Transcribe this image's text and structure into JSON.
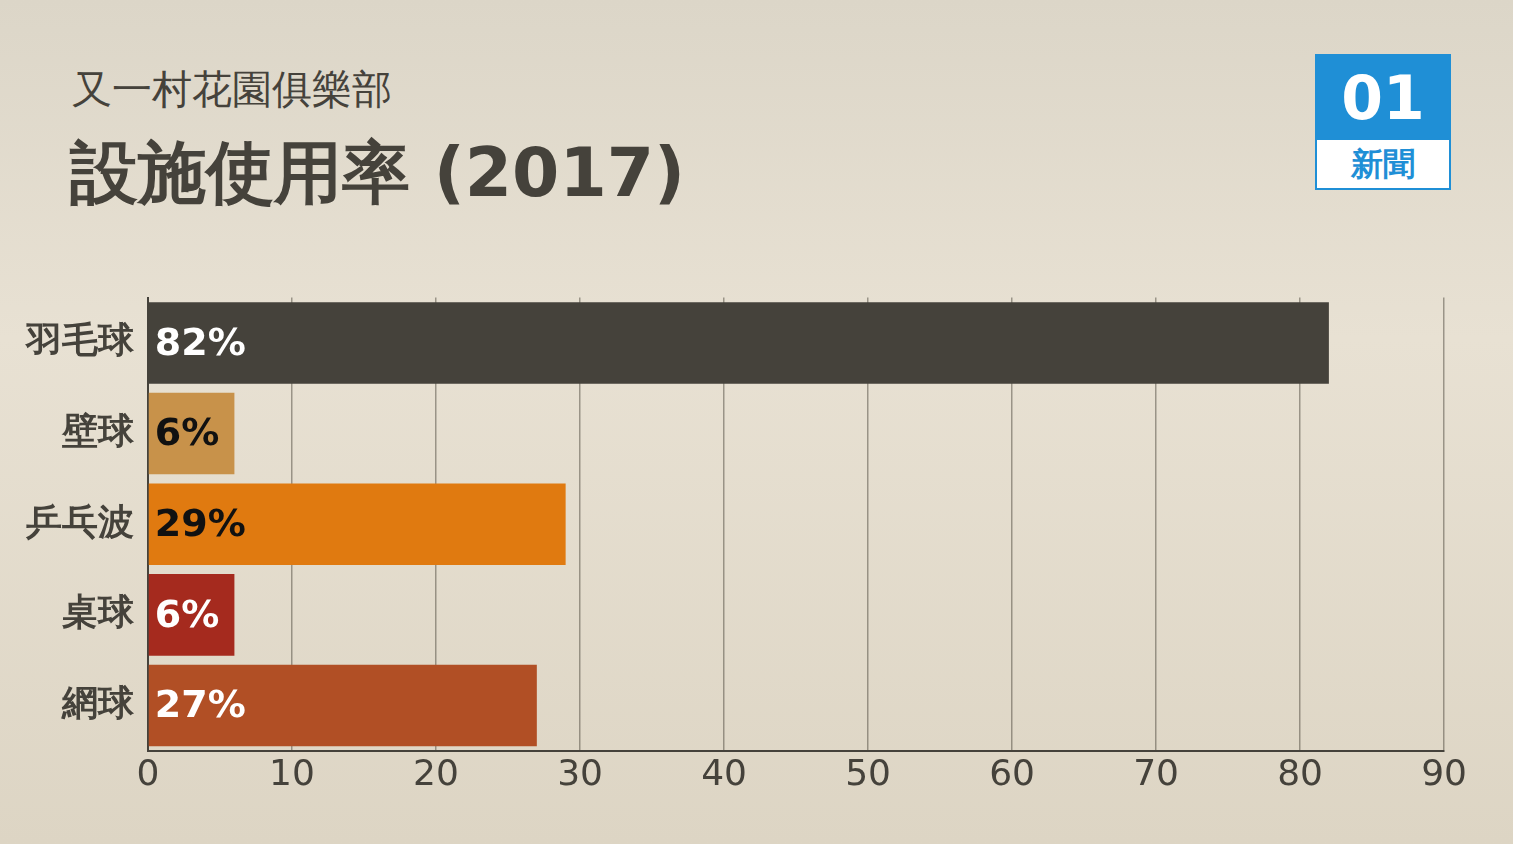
{
  "chart_data": {
    "type": "bar",
    "orientation": "horizontal",
    "subtitle": "又一村花園俱樂部",
    "title": "設施使用率 (2017)",
    "logo": [
      "01",
      "新聞"
    ],
    "categories": [
      "羽毛球",
      "壁球",
      "乒乓波",
      "桌球",
      "網球"
    ],
    "values": [
      82,
      6,
      29,
      6,
      27
    ],
    "value_labels": [
      "82%",
      "6%",
      "29%",
      "6%",
      "27%"
    ],
    "colors": [
      "#45423b",
      "#c8924a",
      "#e07a10",
      "#a52a1e",
      "#b14f25"
    ],
    "xlim": [
      0,
      90
    ],
    "xticks": [
      0,
      10,
      20,
      30,
      40,
      50,
      60,
      70,
      80,
      90
    ],
    "grid": true,
    "data_labels": true
  }
}
